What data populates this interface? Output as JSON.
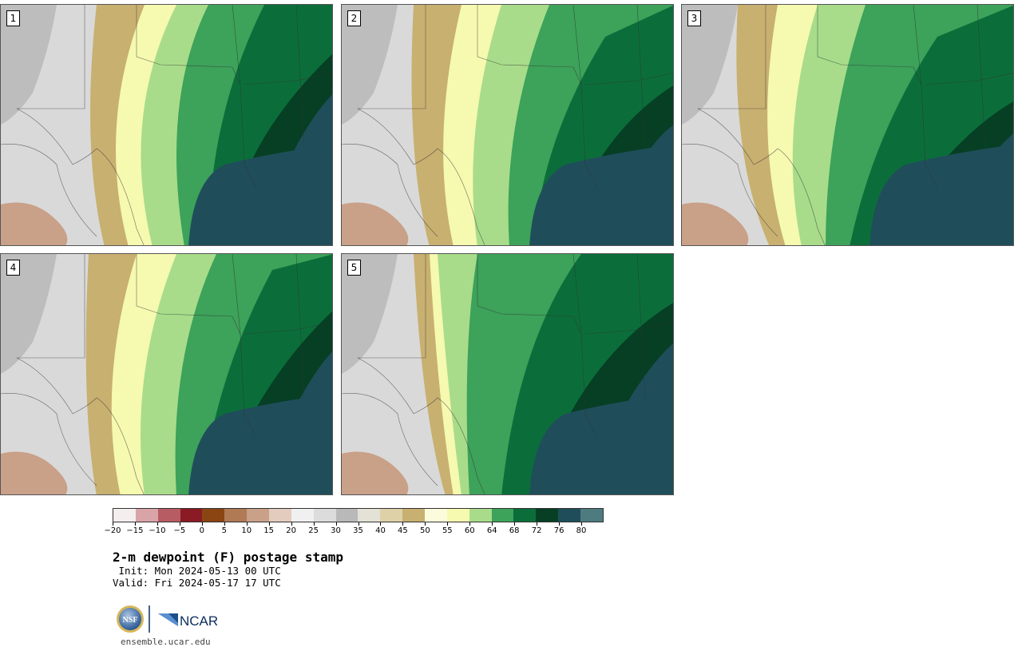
{
  "panels": [
    {
      "label": "1"
    },
    {
      "label": "2"
    },
    {
      "label": "3"
    },
    {
      "label": "4"
    },
    {
      "label": "5"
    }
  ],
  "colorbar": {
    "colors": [
      "#f5eeee",
      "#d9a4a8",
      "#b85c64",
      "#8a1b24",
      "#8b4513",
      "#b07a55",
      "#c9a088",
      "#e3ccbd",
      "#f0f0f0",
      "#dcdcdc",
      "#b9b9b9",
      "#e4e1d6",
      "#ded1a8",
      "#c8b070",
      "#fcfcdc",
      "#f6f9b0",
      "#a8dc8a",
      "#3da25a",
      "#0b6e3a",
      "#063f24",
      "#1f4e5a",
      "#4d7b80"
    ],
    "ticks": [
      "-20",
      "-15",
      "-10",
      "-5",
      "0",
      "5",
      "10",
      "15",
      "20",
      "25",
      "30",
      "35",
      "40",
      "45",
      "50",
      "55",
      "60",
      "64",
      "68",
      "72",
      "76",
      "80"
    ]
  },
  "title": "2-m dewpoint (F) postage stamp",
  "init": " Init: Mon 2024-05-13 00 UTC",
  "valid": "Valid: Fri 2024-05-17 17 UTC",
  "logos": {
    "nsf": "NSF",
    "ncar": "NCAR"
  },
  "url": "ensemble.ucar.edu"
}
